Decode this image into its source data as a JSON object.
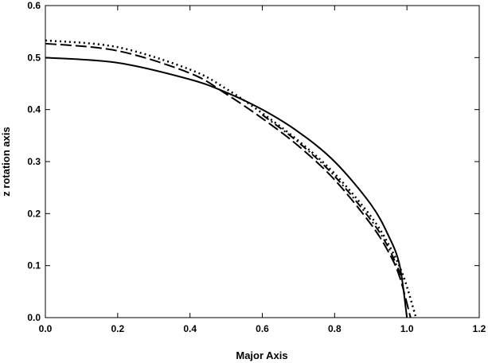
{
  "chart_data": {
    "type": "line",
    "xlabel": "Major Axis",
    "ylabel": "z rotation axis",
    "xlim": [
      0,
      1.2
    ],
    "ylim": [
      0,
      0.6
    ],
    "xticks": [
      "0.0",
      "0.2",
      "0.4",
      "0.6",
      "0.8",
      "1.0",
      "1.2"
    ],
    "yticks": [
      "0.0",
      "0.1",
      "0.2",
      "0.3",
      "0.4",
      "0.5",
      "0.6"
    ],
    "grid": false,
    "legend": "none",
    "series": [
      {
        "style": "solid",
        "x": [
          0.0,
          0.2,
          0.4,
          0.5,
          0.6,
          0.7,
          0.8,
          0.9,
          0.95,
          0.98,
          1.0
        ],
        "y": [
          0.5,
          0.49,
          0.458,
          0.433,
          0.4,
          0.357,
          0.3,
          0.218,
          0.156,
          0.1,
          0.0
        ]
      },
      {
        "style": "dash",
        "x": [
          0.0,
          0.2,
          0.4,
          0.5,
          0.6,
          0.7,
          0.8,
          0.9,
          0.95,
          0.98,
          1.01
        ],
        "y": [
          0.527,
          0.513,
          0.47,
          0.43,
          0.383,
          0.33,
          0.265,
          0.18,
          0.125,
          0.078,
          0.0
        ]
      },
      {
        "style": "dot",
        "x": [
          0.0,
          0.2,
          0.4,
          0.5,
          0.6,
          0.7,
          0.8,
          0.9,
          0.95,
          0.99,
          1.025
        ],
        "y": [
          0.533,
          0.52,
          0.477,
          0.44,
          0.393,
          0.34,
          0.277,
          0.195,
          0.14,
          0.08,
          0.0
        ]
      },
      {
        "style": "dashdot",
        "x": [
          0.6,
          0.7,
          0.8,
          0.9,
          0.95,
          0.99
        ],
        "y": [
          0.39,
          0.337,
          0.272,
          0.188,
          0.133,
          0.07
        ]
      }
    ]
  }
}
